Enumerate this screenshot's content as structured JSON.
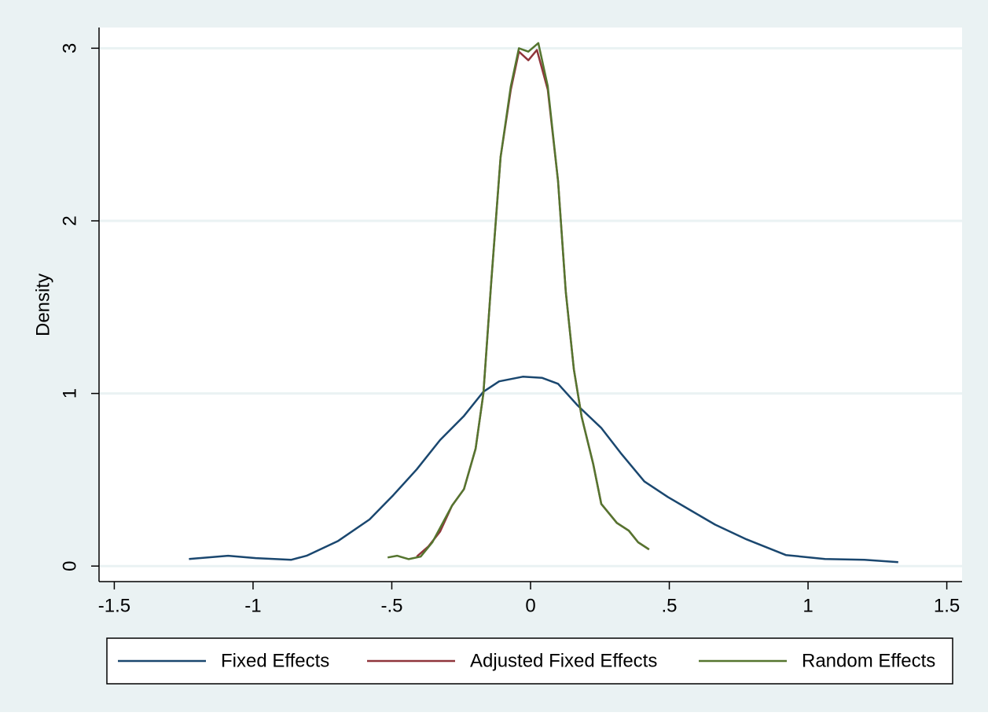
{
  "chart_data": {
    "type": "line",
    "y_label": "Density",
    "xlim": [
      -1.555,
      1.555
    ],
    "ylim": [
      -0.09,
      3.12
    ],
    "xticks": [
      -1.5,
      -1,
      {
        "value": -0.5,
        "label": "-.5"
      },
      0,
      {
        "value": 0.5,
        "label": ".5"
      },
      1,
      1.5
    ],
    "yticks": [
      0,
      1,
      2,
      3
    ],
    "grid": true,
    "legend": "bottom",
    "series": [
      {
        "name": "Fixed Effects",
        "color": "#1a476f",
        "x": [
          -1.231,
          -1.09,
          -0.99,
          -0.863,
          -0.807,
          -0.693,
          -0.58,
          -0.495,
          -0.41,
          -0.326,
          -0.24,
          -0.17,
          -0.113,
          -0.028,
          0.042,
          0.099,
          0.17,
          0.255,
          0.325,
          0.41,
          0.495,
          0.58,
          0.665,
          0.778,
          0.92,
          1.061,
          1.203,
          1.325
        ],
        "values": [
          0.041,
          0.06,
          0.046,
          0.036,
          0.06,
          0.146,
          0.27,
          0.41,
          0.56,
          0.73,
          0.87,
          1.01,
          1.07,
          1.097,
          1.09,
          1.056,
          0.93,
          0.8,
          0.655,
          0.49,
          0.4,
          0.32,
          0.24,
          0.155,
          0.064,
          0.041,
          0.036,
          0.023
        ]
      },
      {
        "name": "Adjusted Fixed Effects",
        "color": "#90353b",
        "x": [
          -0.41,
          -0.368,
          -0.326,
          -0.283,
          -0.24,
          -0.198,
          -0.17,
          -0.142,
          -0.108,
          -0.071,
          -0.042,
          -0.008,
          0.023,
          0.062,
          0.099,
          0.127,
          0.156,
          0.184,
          0.226,
          0.255,
          0.311,
          0.354,
          0.388,
          0.427
        ],
        "values": [
          0.055,
          0.114,
          0.2,
          0.35,
          0.446,
          0.68,
          1.0,
          1.64,
          2.37,
          2.76,
          2.98,
          2.93,
          2.99,
          2.76,
          2.23,
          1.59,
          1.14,
          0.865,
          0.59,
          0.36,
          0.25,
          0.205,
          0.137,
          0.096
        ]
      },
      {
        "name": "Random Effects",
        "color": "#55752f",
        "x": [
          -0.515,
          -0.481,
          -0.439,
          -0.396,
          -0.354,
          -0.283,
          -0.24,
          -0.198,
          -0.17,
          -0.142,
          -0.108,
          -0.071,
          -0.042,
          -0.008,
          0.028,
          0.062,
          0.099,
          0.127,
          0.156,
          0.184,
          0.226,
          0.255,
          0.311,
          0.354,
          0.388,
          0.427
        ],
        "values": [
          0.05,
          0.06,
          0.04,
          0.055,
          0.137,
          0.35,
          0.446,
          0.68,
          1.0,
          1.64,
          2.37,
          2.78,
          3.0,
          2.98,
          3.03,
          2.78,
          2.23,
          1.59,
          1.14,
          0.865,
          0.59,
          0.36,
          0.25,
          0.205,
          0.137,
          0.096
        ]
      }
    ]
  }
}
